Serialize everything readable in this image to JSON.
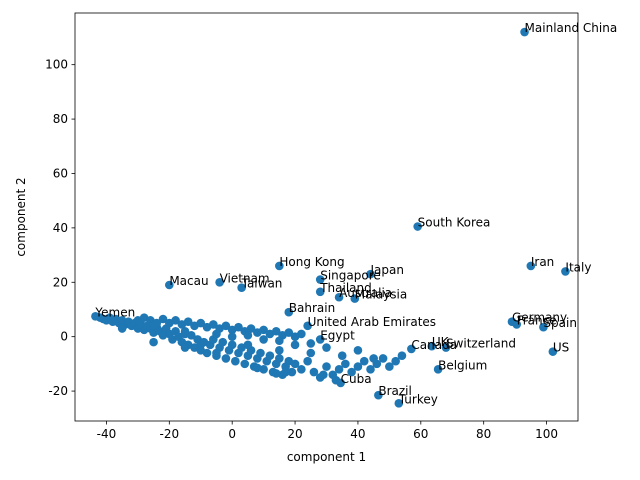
{
  "chart_data": {
    "type": "scatter",
    "xlabel": "component 1",
    "ylabel": "component 2",
    "xlim": [
      -50,
      110
    ],
    "ylim": [
      -31,
      119
    ],
    "xticks": [
      -40,
      -20,
      0,
      20,
      40,
      60,
      80,
      100
    ],
    "yticks": [
      -20,
      0,
      20,
      40,
      60,
      80,
      100
    ],
    "grid": false,
    "marker_color": "#1f77b4",
    "labeled_points": [
      {
        "label": "Mainland China",
        "x": 93,
        "y": 112
      },
      {
        "label": "South Korea",
        "x": 59,
        "y": 40.5
      },
      {
        "label": "Iran",
        "x": 95,
        "y": 26
      },
      {
        "label": "Italy",
        "x": 106,
        "y": 24
      },
      {
        "label": "Japan",
        "x": 44,
        "y": 23
      },
      {
        "label": "Hong Kong",
        "x": 15,
        "y": 26
      },
      {
        "label": "Singapore",
        "x": 28,
        "y": 21
      },
      {
        "label": "Thailand",
        "x": 28,
        "y": 16.5
      },
      {
        "label": "Australia",
        "x": 34,
        "y": 14.5
      },
      {
        "label": "Malaysia",
        "x": 39,
        "y": 14
      },
      {
        "label": "Macau",
        "x": -20,
        "y": 19
      },
      {
        "label": "Vietnam",
        "x": -4,
        "y": 20
      },
      {
        "label": "Taiwan",
        "x": 3,
        "y": 18
      },
      {
        "label": "Bahrain",
        "x": 18,
        "y": 9
      },
      {
        "label": "United Arab Emirates",
        "x": 24,
        "y": 4
      },
      {
        "label": "Germany",
        "x": 89,
        "y": 5.5
      },
      {
        "label": "France",
        "x": 90.5,
        "y": 4.5
      },
      {
        "label": "Spain",
        "x": 99,
        "y": 3.5
      },
      {
        "label": "US",
        "x": 102,
        "y": -5.5
      },
      {
        "label": "Switzerland",
        "x": 68,
        "y": -4
      },
      {
        "label": "UK",
        "x": 63.5,
        "y": -3.5
      },
      {
        "label": "Canada",
        "x": 57,
        "y": -4.5
      },
      {
        "label": "Belgium",
        "x": 65.5,
        "y": -12
      },
      {
        "label": "Brazil",
        "x": 46.5,
        "y": -21.5
      },
      {
        "label": "Turkey",
        "x": 53,
        "y": -24.5
      },
      {
        "label": "Cuba",
        "x": 34.5,
        "y": -17
      },
      {
        "label": "Yemen",
        "x": -43.5,
        "y": 7.5
      },
      {
        "label": "Egypt",
        "x": 28,
        "y": -1
      }
    ],
    "unlabeled_points": [
      [
        -42,
        7
      ],
      [
        -41,
        6.5
      ],
      [
        -40,
        6
      ],
      [
        -39,
        7
      ],
      [
        -38,
        5.5
      ],
      [
        -37,
        6.5
      ],
      [
        -36,
        5
      ],
      [
        -35,
        6
      ],
      [
        -34,
        4.5
      ],
      [
        -33,
        5.5
      ],
      [
        -32,
        4
      ],
      [
        -31,
        5
      ],
      [
        -30,
        3
      ],
      [
        -29,
        4.5
      ],
      [
        -28,
        2.5
      ],
      [
        -27,
        4
      ],
      [
        -26,
        3
      ],
      [
        -25,
        1.5
      ],
      [
        -24,
        3.5
      ],
      [
        -23,
        2
      ],
      [
        -22,
        0.5
      ],
      [
        -21,
        3
      ],
      [
        -20,
        1
      ],
      [
        -19,
        -1
      ],
      [
        -18,
        2
      ],
      [
        -17,
        0
      ],
      [
        -16,
        -2
      ],
      [
        -15,
        1
      ],
      [
        -14,
        -3
      ],
      [
        -13,
        0.5
      ],
      [
        -12,
        -4
      ],
      [
        -11,
        -1
      ],
      [
        -10,
        -5
      ],
      [
        -9,
        -2
      ],
      [
        -8,
        -6
      ],
      [
        -7,
        -3
      ],
      [
        -6,
        -1
      ],
      [
        -5,
        -7
      ],
      [
        -4,
        -4
      ],
      [
        -3,
        -2
      ],
      [
        -2,
        -8
      ],
      [
        -1,
        -5
      ],
      [
        0,
        -3
      ],
      [
        1,
        -9
      ],
      [
        2,
        -6
      ],
      [
        3,
        -4
      ],
      [
        4,
        -10
      ],
      [
        5,
        -7
      ],
      [
        6,
        -5
      ],
      [
        7,
        -11
      ],
      [
        8,
        -8
      ],
      [
        9,
        -6
      ],
      [
        10,
        -12
      ],
      [
        11,
        -9
      ],
      [
        12,
        -7
      ],
      [
        13,
        -13
      ],
      [
        14,
        -10
      ],
      [
        15,
        -8
      ],
      [
        16,
        -14
      ],
      [
        17,
        -11
      ],
      [
        18,
        -9
      ],
      [
        19,
        -13
      ],
      [
        20,
        -10
      ],
      [
        22,
        -12
      ],
      [
        24,
        -9
      ],
      [
        26,
        -13
      ],
      [
        28,
        -15
      ],
      [
        30,
        -11
      ],
      [
        32,
        -14
      ],
      [
        34,
        -12
      ],
      [
        36,
        -10
      ],
      [
        38,
        -13
      ],
      [
        40,
        -11
      ],
      [
        42,
        -9
      ],
      [
        44,
        -12
      ],
      [
        46,
        -10
      ],
      [
        48,
        -8
      ],
      [
        50,
        -11
      ],
      [
        52,
        -9
      ],
      [
        54,
        -7
      ],
      [
        -30,
        6
      ],
      [
        -28,
        7
      ],
      [
        -26,
        6
      ],
      [
        -24,
        5
      ],
      [
        -22,
        6.5
      ],
      [
        -20,
        5
      ],
      [
        -18,
        6
      ],
      [
        -16,
        4.5
      ],
      [
        -14,
        5.5
      ],
      [
        -12,
        4
      ],
      [
        -10,
        5
      ],
      [
        -8,
        3.5
      ],
      [
        -6,
        4.5
      ],
      [
        -4,
        3
      ],
      [
        -2,
        4
      ],
      [
        0,
        2.5
      ],
      [
        2,
        3.5
      ],
      [
        4,
        2
      ],
      [
        6,
        3
      ],
      [
        8,
        1.5
      ],
      [
        10,
        2.5
      ],
      [
        12,
        1
      ],
      [
        14,
        2
      ],
      [
        16,
        0.5
      ],
      [
        18,
        1.5
      ],
      [
        20,
        0
      ],
      [
        22,
        1
      ],
      [
        -25,
        -2
      ],
      [
        -15,
        -4
      ],
      [
        -5,
        -6
      ],
      [
        5,
        -3
      ],
      [
        15,
        -5
      ],
      [
        25,
        -6
      ],
      [
        35,
        -7
      ],
      [
        45,
        -8
      ],
      [
        14,
        -13.5
      ],
      [
        17,
        -13
      ],
      [
        29,
        -14
      ],
      [
        33,
        -16
      ],
      [
        8,
        -11.5
      ],
      [
        -10,
        -3
      ],
      [
        0,
        0
      ],
      [
        10,
        -1
      ],
      [
        20,
        -3
      ],
      [
        30,
        -4
      ],
      [
        40,
        -5
      ],
      [
        -35,
        3
      ],
      [
        -25,
        4
      ],
      [
        -15,
        2
      ],
      [
        -5,
        1
      ],
      [
        5,
        0.5
      ],
      [
        15,
        -1.5
      ],
      [
        25,
        -2.5
      ]
    ]
  }
}
